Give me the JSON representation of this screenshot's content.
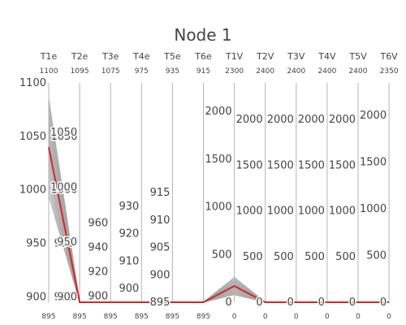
{
  "chart_data": {
    "type": "parallel_coordinates",
    "title": "Node 1",
    "colors": {
      "highlight": "#d62728",
      "background": "#a6a6a6",
      "axis": "#b3b3b3"
    },
    "dimensions": [
      {
        "label": "T1e",
        "range": [
          895,
          1100
        ],
        "range_max_label": "1100",
        "range_min_label": "895",
        "ticks": [
          900,
          950,
          1000,
          1050,
          1100
        ],
        "inner_ticks": [
          900,
          950,
          1000,
          1050
        ]
      },
      {
        "label": "T2e",
        "range": [
          895,
          1095
        ],
        "range_max_label": "1095",
        "range_min_label": "895",
        "ticks": [
          900,
          950,
          1000,
          1050
        ],
        "inner_ticks": []
      },
      {
        "label": "T3e",
        "range": [
          895,
          1075
        ],
        "range_max_label": "1075",
        "range_min_label": "895",
        "ticks": [
          900,
          920,
          940,
          960
        ],
        "inner_ticks": []
      },
      {
        "label": "T4e",
        "range": [
          895,
          975
        ],
        "range_max_label": "975",
        "range_min_label": "895",
        "ticks": [
          900,
          910,
          920,
          930
        ],
        "inner_ticks": []
      },
      {
        "label": "T5e",
        "range": [
          895,
          935
        ],
        "range_max_label": "935",
        "range_min_label": "895",
        "ticks": [
          895,
          900,
          905,
          910,
          915
        ],
        "inner_ticks": []
      },
      {
        "label": "T6e",
        "range": [
          895,
          915
        ],
        "range_max_label": "915",
        "range_min_label": "895",
        "ticks": [],
        "inner_ticks": []
      },
      {
        "label": "T1V",
        "range": [
          0,
          2300
        ],
        "range_max_label": "2300",
        "range_min_label": "0",
        "ticks": [
          0,
          500,
          1000,
          1500,
          2000
        ],
        "inner_ticks": []
      },
      {
        "label": "T2V",
        "range": [
          0,
          2400
        ],
        "range_max_label": "2400",
        "range_min_label": "0",
        "ticks": [
          0,
          500,
          1000,
          1500,
          2000
        ],
        "inner_ticks": []
      },
      {
        "label": "T3V",
        "range": [
          0,
          2400
        ],
        "range_max_label": "2400",
        "range_min_label": "0",
        "ticks": [
          0,
          500,
          1000,
          1500,
          2000
        ],
        "inner_ticks": []
      },
      {
        "label": "T4V",
        "range": [
          0,
          2400
        ],
        "range_max_label": "2400",
        "range_min_label": "0",
        "ticks": [
          0,
          500,
          1000,
          1500,
          2000
        ],
        "inner_ticks": []
      },
      {
        "label": "T5V",
        "range": [
          0,
          2400
        ],
        "range_max_label": "2400",
        "range_min_label": "0",
        "ticks": [
          0,
          500,
          1000,
          1500,
          2000
        ],
        "inner_ticks": []
      },
      {
        "label": "T6V",
        "range": [
          0,
          2350
        ],
        "range_max_label": "2350",
        "range_min_label": "0",
        "ticks": [
          0,
          500,
          1000,
          1500,
          2000
        ],
        "inner_ticks": []
      }
    ],
    "highlight": [
      1040,
      895,
      895,
      895,
      895,
      895,
      170,
      0,
      0,
      0,
      0,
      0
    ],
    "background_lines": [
      [
        1085,
        895,
        895,
        895,
        895,
        895,
        260,
        0,
        0,
        0,
        0,
        0
      ],
      [
        1080,
        895,
        895,
        895,
        895,
        895,
        245,
        0,
        0,
        0,
        0,
        0
      ],
      [
        1075,
        895,
        895,
        895,
        895,
        895,
        230,
        0,
        0,
        0,
        0,
        0
      ],
      [
        1070,
        895,
        895,
        895,
        895,
        895,
        220,
        0,
        0,
        0,
        0,
        0
      ],
      [
        1065,
        895,
        895,
        895,
        895,
        895,
        210,
        0,
        0,
        0,
        0,
        0
      ],
      [
        1060,
        895,
        895,
        895,
        895,
        895,
        200,
        0,
        0,
        0,
        0,
        0
      ],
      [
        1055,
        895,
        895,
        895,
        895,
        895,
        190,
        0,
        0,
        0,
        0,
        0
      ],
      [
        1050,
        895,
        895,
        895,
        895,
        895,
        180,
        0,
        0,
        0,
        0,
        0
      ],
      [
        1045,
        895,
        895,
        895,
        895,
        895,
        175,
        0,
        0,
        0,
        0,
        0
      ],
      [
        1035,
        895,
        895,
        895,
        895,
        895,
        160,
        0,
        0,
        0,
        0,
        0
      ],
      [
        1030,
        895,
        895,
        895,
        895,
        895,
        150,
        0,
        0,
        0,
        0,
        0
      ],
      [
        1025,
        895,
        895,
        895,
        895,
        895,
        140,
        0,
        0,
        0,
        0,
        0
      ],
      [
        1020,
        895,
        895,
        895,
        895,
        895,
        130,
        0,
        0,
        0,
        0,
        0
      ],
      [
        1015,
        895,
        895,
        895,
        895,
        895,
        120,
        0,
        0,
        0,
        0,
        0
      ],
      [
        1010,
        895,
        895,
        895,
        895,
        895,
        110,
        0,
        0,
        0,
        0,
        0
      ],
      [
        1005,
        895,
        895,
        895,
        895,
        895,
        100,
        0,
        0,
        0,
        0,
        0
      ],
      [
        1000,
        895,
        895,
        895,
        895,
        895,
        90,
        0,
        0,
        0,
        0,
        0
      ],
      [
        995,
        895,
        895,
        895,
        895,
        895,
        80,
        0,
        0,
        0,
        0,
        0
      ]
    ]
  }
}
